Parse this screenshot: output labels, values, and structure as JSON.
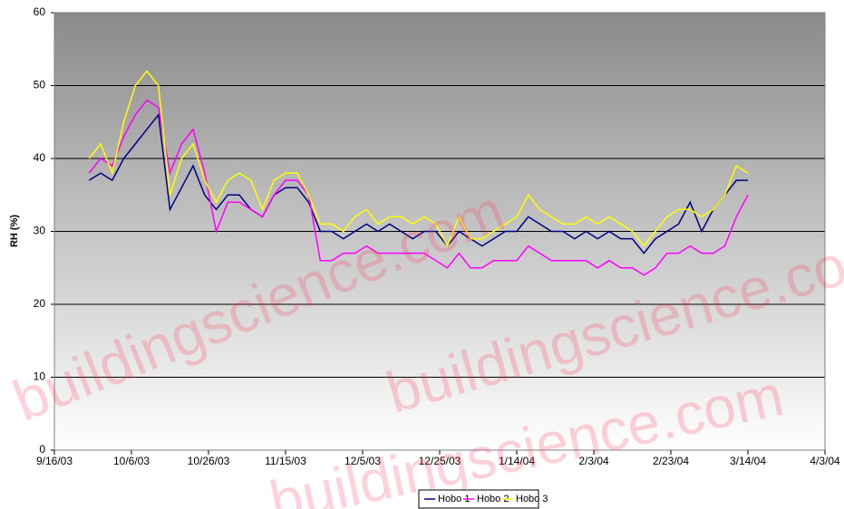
{
  "chart_data": {
    "type": "line",
    "y_label": "RH (%)",
    "watermark": "buildingscience.com",
    "x": [
      "2003-09-25",
      "2003-09-28",
      "2003-10-01",
      "2003-10-04",
      "2003-10-07",
      "2003-10-10",
      "2003-10-13",
      "2003-10-16",
      "2003-10-19",
      "2003-10-22",
      "2003-10-25",
      "2003-10-28",
      "2003-10-31",
      "2003-11-03",
      "2003-11-06",
      "2003-11-09",
      "2003-11-12",
      "2003-11-15",
      "2003-11-18",
      "2003-11-21",
      "2003-11-24",
      "2003-11-27",
      "2003-11-30",
      "2003-12-03",
      "2003-12-06",
      "2003-12-09",
      "2003-12-12",
      "2003-12-15",
      "2003-12-18",
      "2003-12-21",
      "2003-12-24",
      "2003-12-27",
      "2003-12-30",
      "2004-01-02",
      "2004-01-05",
      "2004-01-08",
      "2004-01-11",
      "2004-01-14",
      "2004-01-17",
      "2004-01-20",
      "2004-01-23",
      "2004-01-26",
      "2004-01-29",
      "2004-02-01",
      "2004-02-04",
      "2004-02-07",
      "2004-02-10",
      "2004-02-13",
      "2004-02-16",
      "2004-02-19",
      "2004-02-22",
      "2004-02-25",
      "2004-02-28",
      "2004-03-02",
      "2004-03-05",
      "2004-03-08",
      "2004-03-11",
      "2004-03-14"
    ],
    "series": [
      {
        "name": "Hobo 1",
        "color": "#000080",
        "values": [
          37,
          38,
          37,
          40,
          42,
          44,
          46,
          33,
          36,
          39,
          35,
          33,
          35,
          35,
          33,
          32,
          35,
          36,
          36,
          34,
          30,
          30,
          29,
          30,
          31,
          30,
          31,
          30,
          29,
          30,
          30,
          28,
          30,
          29,
          28,
          29,
          30,
          30,
          32,
          31,
          30,
          30,
          29,
          30,
          29,
          30,
          29,
          29,
          27,
          29,
          30,
          31,
          34,
          30,
          33,
          35,
          37,
          37
        ]
      },
      {
        "name": "Hobo 2",
        "color": "#ff00ff",
        "values": [
          38,
          40,
          39,
          43,
          46,
          48,
          47,
          38,
          42,
          44,
          38,
          30,
          34,
          34,
          33,
          32,
          35,
          37,
          37,
          35,
          26,
          26,
          27,
          27,
          28,
          27,
          27,
          27,
          27,
          27,
          26,
          25,
          27,
          25,
          25,
          26,
          26,
          26,
          28,
          27,
          26,
          26,
          26,
          26,
          25,
          26,
          25,
          25,
          24,
          25,
          27,
          27,
          28,
          27,
          27,
          28,
          32,
          35
        ]
      },
      {
        "name": "Hobo 3",
        "color": "#ffff00",
        "values": [
          40,
          42,
          38,
          45,
          50,
          52,
          50,
          35,
          40,
          42,
          37,
          34,
          37,
          38,
          37,
          33,
          37,
          38,
          38,
          35,
          31,
          31,
          30,
          32,
          33,
          31,
          32,
          32,
          31,
          32,
          31,
          28,
          32,
          29,
          29,
          30,
          31,
          32,
          35,
          33,
          32,
          31,
          31,
          32,
          31,
          32,
          31,
          30,
          28,
          30,
          32,
          33,
          33,
          32,
          33,
          35,
          39,
          38
        ]
      }
    ],
    "xlim": [
      "2003-09-16",
      "2004-04-03"
    ],
    "xticks": [
      {
        "value": "2003-09-16",
        "label": "9/16/03"
      },
      {
        "value": "2003-10-06",
        "label": "10/6/03"
      },
      {
        "value": "2003-10-26",
        "label": "10/26/03"
      },
      {
        "value": "2003-11-15",
        "label": "11/15/03"
      },
      {
        "value": "2003-12-05",
        "label": "12/5/03"
      },
      {
        "value": "2003-12-25",
        "label": "12/25/03"
      },
      {
        "value": "2004-01-14",
        "label": "1/14/04"
      },
      {
        "value": "2004-02-03",
        "label": "2/3/04"
      },
      {
        "value": "2004-02-23",
        "label": "2/23/04"
      },
      {
        "value": "2004-03-14",
        "label": "3/14/04"
      },
      {
        "value": "2004-04-03",
        "label": "4/3/04"
      }
    ],
    "ylim": [
      0,
      60
    ],
    "yticks": [
      0,
      10,
      20,
      30,
      40,
      50,
      60
    ],
    "grid": true,
    "legend": "bottom"
  }
}
